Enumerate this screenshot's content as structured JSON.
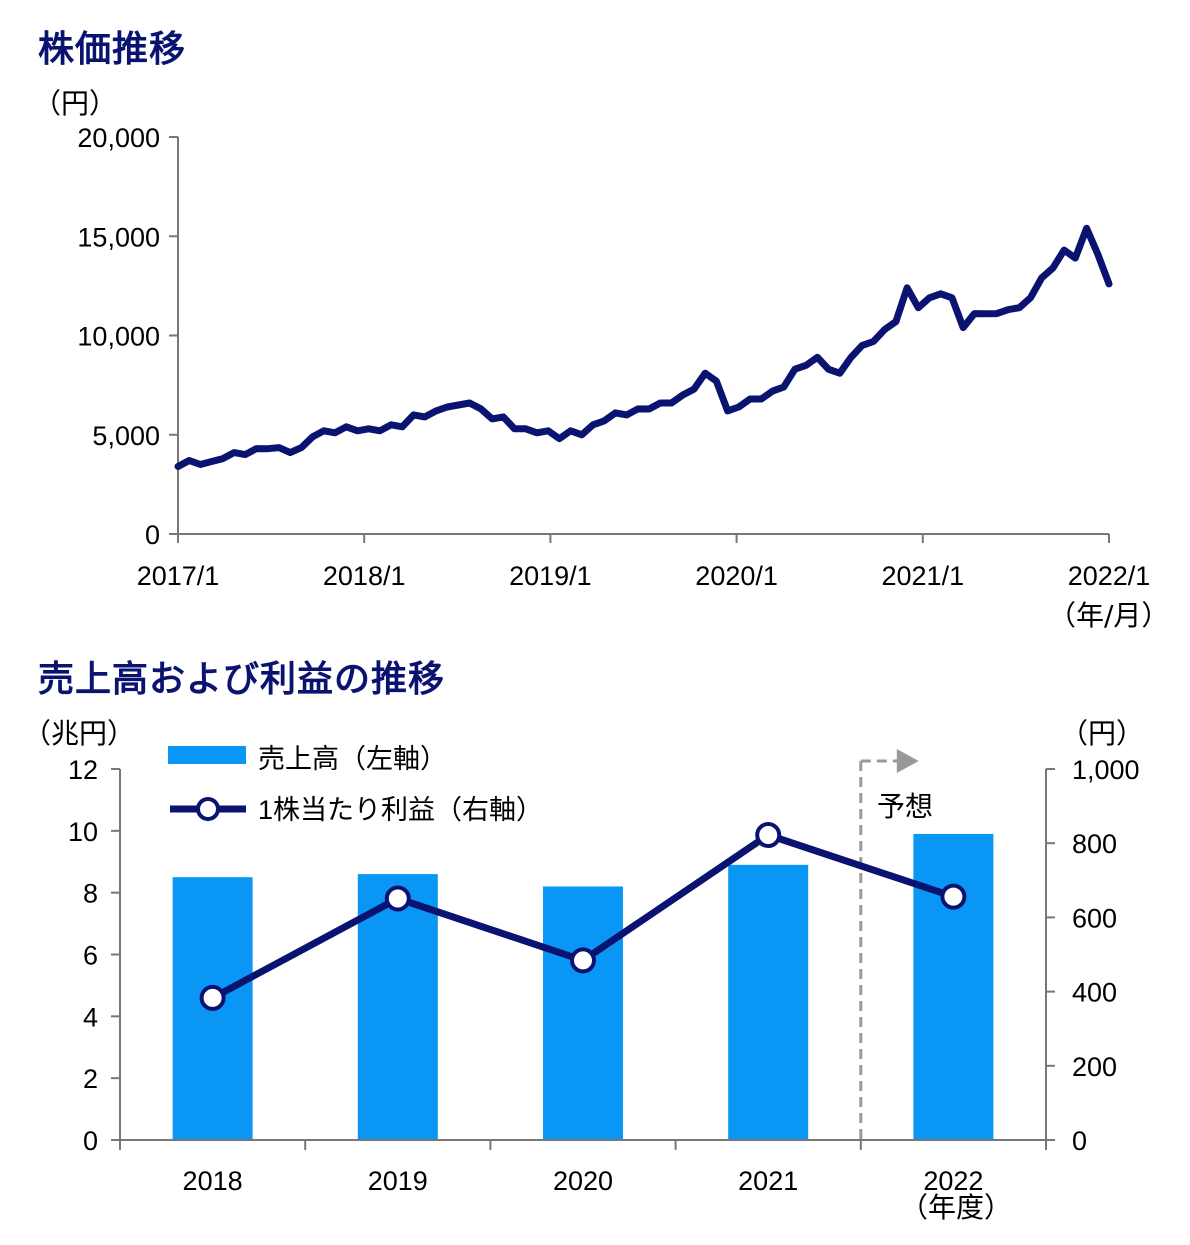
{
  "chart_data": [
    {
      "type": "line",
      "title": "株価推移",
      "ylabel": "（円）",
      "xlabel": "（年/月）",
      "ylim": [
        0,
        20000
      ],
      "yticks": [
        0,
        5000,
        10000,
        15000,
        20000
      ],
      "ytick_labels": [
        "0",
        "5,000",
        "10,000",
        "15,000",
        "20,000"
      ],
      "xticks": [
        "2017/1",
        "2018/1",
        "2019/1",
        "2020/1",
        "2021/1",
        "2022/1"
      ],
      "series_color": "#0a1470",
      "series": [
        {
          "values_by_month": [
            3500,
            3600,
            3600,
            3550,
            3900,
            4000,
            4100,
            4200,
            4400,
            4250,
            4200,
            4250,
            5000,
            5100,
            5200,
            5300,
            5300,
            5200,
            5300,
            5400,
            5500,
            5900,
            6000,
            6100,
            6500,
            6400,
            6700,
            6200,
            5900,
            5800,
            5400,
            5200,
            5200,
            5100,
            4900,
            5100,
            5100,
            5400,
            5800,
            6000,
            6100,
            6200,
            6400,
            6500,
            6700,
            6900,
            7400,
            8000,
            7800,
            6100,
            6500,
            6700,
            6900,
            7100,
            7500,
            8200,
            8600,
            8800,
            8400,
            8000,
            9000,
            9400,
            9800,
            10200,
            10800,
            12300,
            11500,
            11800,
            12200,
            11800,
            10500,
            11000,
            11200,
            11000,
            11400,
            11300,
            12000,
            12800,
            13500,
            14200,
            14000,
            15300,
            14200,
            12500
          ]
        }
      ]
    },
    {
      "type": "bar+line",
      "title": "売上高および利益の推移",
      "categories": [
        "2018",
        "2019",
        "2020",
        "2021",
        "2022"
      ],
      "xlabel": "（年度）",
      "ylabel_left": "（兆円）",
      "ylabel_right": "（円）",
      "ylim_left": [
        0,
        12
      ],
      "ylim_right": [
        0,
        1000
      ],
      "yticks_left": [
        "0",
        "2",
        "4",
        "6",
        "8",
        "10",
        "12"
      ],
      "yticks_right": [
        "0",
        "200",
        "400",
        "600",
        "800",
        "1,000"
      ],
      "forecast_label": "予想",
      "series": [
        {
          "name": "売上高（左軸）",
          "kind": "bar",
          "axis": "left",
          "color": "#0a96f5",
          "values": [
            8.5,
            8.6,
            8.2,
            8.9,
            9.9
          ]
        },
        {
          "name": "1株当たり利益（右軸）",
          "kind": "line",
          "axis": "right",
          "color": "#0a1470",
          "values": [
            383,
            651,
            484,
            822,
            656
          ]
        }
      ]
    }
  ]
}
